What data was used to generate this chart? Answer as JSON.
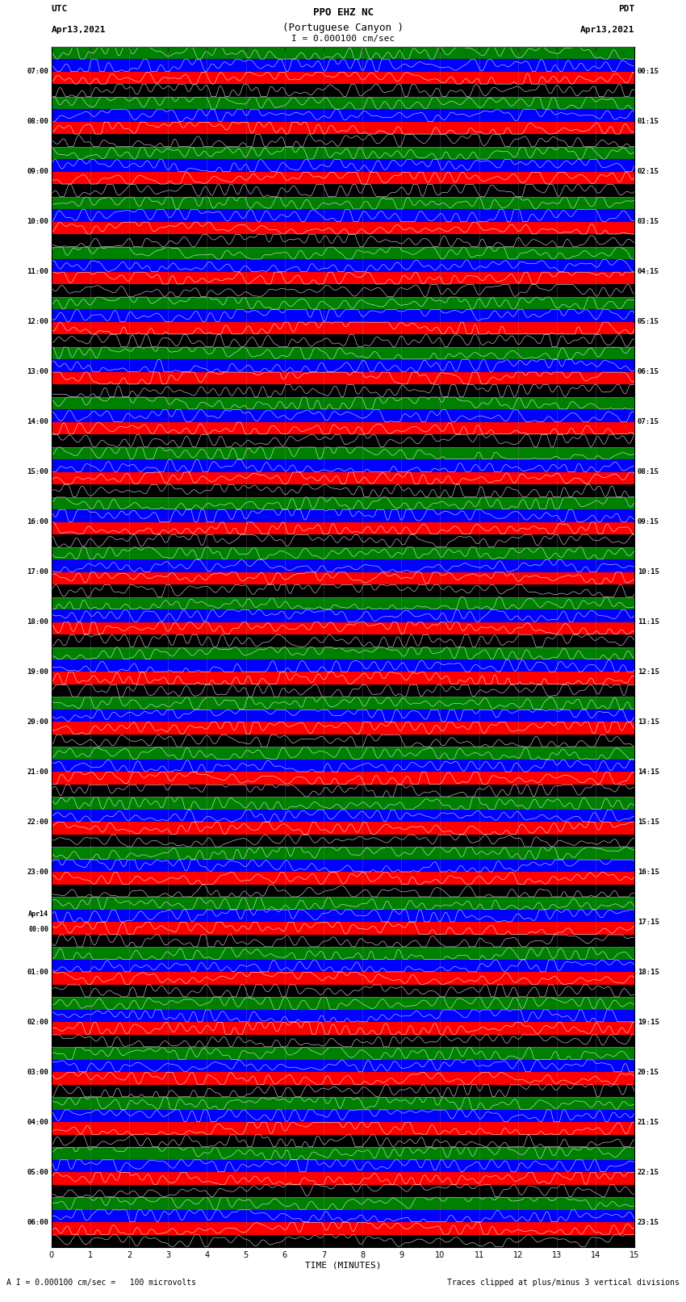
{
  "title_line1": "PPO EHZ NC",
  "title_line2": "(Portuguese Canyon )",
  "title_line3": "I = 0.000100 cm/sec",
  "left_header_line1": "UTC",
  "left_header_line2": "Apr13,2021",
  "right_header_line1": "PDT",
  "right_header_line2": "Apr13,2021",
  "xlabel": "TIME (MINUTES)",
  "footer_left": "A I = 0.000100 cm/sec =   100 microvolts",
  "footer_right": "Traces clipped at plus/minus 3 vertical divisions",
  "utc_labels": [
    "07:00",
    "08:00",
    "09:00",
    "10:00",
    "11:00",
    "12:00",
    "13:00",
    "14:00",
    "15:00",
    "16:00",
    "17:00",
    "18:00",
    "19:00",
    "20:00",
    "21:00",
    "22:00",
    "23:00",
    "Apr14\n00:00",
    "01:00",
    "02:00",
    "03:00",
    "04:00",
    "05:00",
    "06:00"
  ],
  "pdt_labels": [
    "00:15",
    "01:15",
    "02:15",
    "03:15",
    "04:15",
    "05:15",
    "06:15",
    "07:15",
    "08:15",
    "09:15",
    "10:15",
    "11:15",
    "12:15",
    "13:15",
    "14:15",
    "15:15",
    "16:15",
    "17:15",
    "18:15",
    "19:15",
    "20:15",
    "21:15",
    "22:15",
    "23:15"
  ],
  "n_rows": 24,
  "n_traces_per_row": 4,
  "trace_colors": [
    "black",
    "red",
    "blue",
    "green"
  ],
  "bg_color": "white",
  "xlim": [
    0,
    15
  ],
  "xticks": [
    0,
    1,
    2,
    3,
    4,
    5,
    6,
    7,
    8,
    9,
    10,
    11,
    12,
    13,
    14,
    15
  ],
  "seed": 42
}
